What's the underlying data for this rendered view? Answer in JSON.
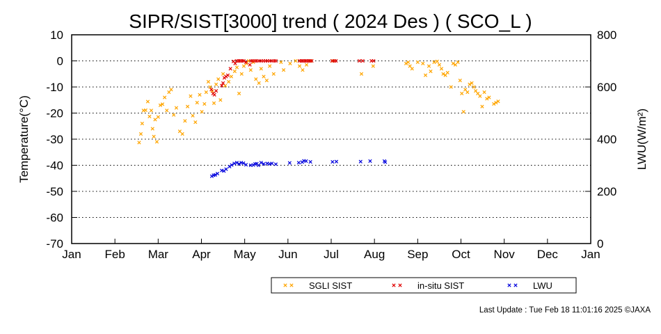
{
  "chart_data": {
    "type": "scatter",
    "title": "SIPR/SIST[3000] trend ( 2024 Des ) ( SCO_L )",
    "ylabel": "Temperature(°C)",
    "y2label": "LWU(W/m²)",
    "ylim": [
      -70,
      10
    ],
    "y2lim": [
      0,
      800
    ],
    "yticks": [
      "10",
      "0",
      "-10",
      "-20",
      "-30",
      "-40",
      "-50",
      "-60",
      "-70"
    ],
    "y2ticks": [
      "800",
      "600",
      "400",
      "200",
      "0"
    ],
    "xtick_labels": [
      "Jan",
      "Feb",
      "Mar",
      "Apr",
      "May",
      "Jun",
      "Jul",
      "Aug",
      "Sep",
      "Oct",
      "Nov",
      "Dec",
      "Jan"
    ],
    "x_unit": "month (1.0 = Jan 1)",
    "grid": "horizontal dotted",
    "legend_position": "bottom-right",
    "series": [
      {
        "name": "SGLI SIST",
        "color": "#ffa500",
        "axis": "left",
        "points": [
          [
            2.56,
            -31.3
          ],
          [
            2.6,
            -28.0
          ],
          [
            2.63,
            -24.0
          ],
          [
            2.66,
            -19.0
          ],
          [
            2.71,
            -18.9
          ],
          [
            2.76,
            -15.6
          ],
          [
            2.8,
            -21.3
          ],
          [
            2.84,
            -19.0
          ],
          [
            2.87,
            -26.0
          ],
          [
            2.9,
            -29.0
          ],
          [
            2.93,
            -22.5
          ],
          [
            2.97,
            -31.0
          ],
          [
            3.0,
            -21.5
          ],
          [
            3.05,
            -17.0
          ],
          [
            3.1,
            -16.6
          ],
          [
            3.15,
            -14.0
          ],
          [
            3.2,
            -19.0
          ],
          [
            3.25,
            -12.0
          ],
          [
            3.3,
            -11.0
          ],
          [
            3.36,
            -20.7
          ],
          [
            3.42,
            -18.0
          ],
          [
            3.5,
            -27.0
          ],
          [
            3.56,
            -28.0
          ],
          [
            3.62,
            -23.0
          ],
          [
            3.68,
            -17.5
          ],
          [
            3.75,
            -13.5
          ],
          [
            3.8,
            -21.0
          ],
          [
            3.86,
            -23.5
          ],
          [
            3.9,
            -16.0
          ],
          [
            3.96,
            -13.0
          ],
          [
            4.01,
            -19.5
          ],
          [
            4.07,
            -16.5
          ],
          [
            4.11,
            -12.0
          ],
          [
            4.16,
            -8.0
          ],
          [
            4.2,
            -10.0
          ],
          [
            4.25,
            -11.5
          ],
          [
            4.29,
            -16.2
          ],
          [
            4.34,
            -9.0
          ],
          [
            4.39,
            -7.0
          ],
          [
            4.44,
            -15.0
          ],
          [
            4.5,
            -5.0
          ],
          [
            4.55,
            -9.5
          ],
          [
            4.63,
            -8.0
          ],
          [
            4.69,
            -6.0
          ],
          [
            4.77,
            -4.0
          ],
          [
            4.82,
            -2.5
          ],
          [
            4.87,
            -12.5
          ],
          [
            4.93,
            -5.0
          ],
          [
            4.98,
            -2.0
          ],
          [
            5.04,
            -1.0
          ],
          [
            5.09,
            0.0
          ],
          [
            5.14,
            -3.5
          ],
          [
            5.2,
            -0.5
          ],
          [
            5.26,
            -7.0
          ],
          [
            5.33,
            -8.5
          ],
          [
            5.38,
            -3.0
          ],
          [
            5.44,
            -6.0
          ],
          [
            5.51,
            -7.5
          ],
          [
            5.58,
            -2.0
          ],
          [
            5.67,
            -5.0
          ],
          [
            5.84,
            -0.5
          ],
          [
            5.9,
            -3.5
          ],
          [
            6.05,
            -1.0
          ],
          [
            6.18,
            0.0
          ],
          [
            6.27,
            -2.0
          ],
          [
            6.34,
            -3.5
          ],
          [
            6.43,
            -1.5
          ],
          [
            6.52,
            0.0
          ],
          [
            7.03,
            0.0
          ],
          [
            7.7,
            -5.0
          ],
          [
            7.97,
            -2.0
          ],
          [
            8.73,
            -1.0
          ],
          [
            8.78,
            -0.5
          ],
          [
            8.82,
            -2.0
          ],
          [
            8.87,
            -3.0
          ],
          [
            9.0,
            -0.5
          ],
          [
            9.12,
            -1.0
          ],
          [
            9.18,
            -5.5
          ],
          [
            9.26,
            -2.0
          ],
          [
            9.3,
            -4.0
          ],
          [
            9.38,
            -0.5
          ],
          [
            9.45,
            -0.2
          ],
          [
            9.5,
            -1.5
          ],
          [
            9.55,
            -3.0
          ],
          [
            9.59,
            -5.0
          ],
          [
            9.64,
            -5.5
          ],
          [
            9.69,
            -4.5
          ],
          [
            9.77,
            -10.0
          ],
          [
            9.82,
            -1.0
          ],
          [
            9.87,
            -1.5
          ],
          [
            9.93,
            -0.5
          ],
          [
            9.98,
            -7.5
          ],
          [
            10.02,
            -12.5
          ],
          [
            10.06,
            -19.5
          ],
          [
            10.1,
            -11.0
          ],
          [
            10.15,
            -12.0
          ],
          [
            10.2,
            -9.0
          ],
          [
            10.25,
            -8.5
          ],
          [
            10.3,
            -10.0
          ],
          [
            10.34,
            -11.5
          ],
          [
            10.39,
            -12.5
          ],
          [
            10.44,
            -13.5
          ],
          [
            10.49,
            -17.5
          ],
          [
            10.54,
            -12.0
          ],
          [
            10.6,
            -14.5
          ],
          [
            10.65,
            -14.0
          ],
          [
            10.76,
            -16.5
          ],
          [
            10.81,
            -16.0
          ],
          [
            10.86,
            -15.5
          ]
        ]
      },
      {
        "name": "in-situ SIST",
        "color": "#e00000",
        "axis": "left",
        "points": [
          [
            4.23,
            -11.0
          ],
          [
            4.27,
            -12.5
          ],
          [
            4.3,
            -13.0
          ],
          [
            4.34,
            -11.5
          ],
          [
            4.47,
            -9.5
          ],
          [
            4.5,
            -8.5
          ],
          [
            4.53,
            -6.5
          ],
          [
            4.57,
            -6.0
          ],
          [
            4.61,
            -5.5
          ],
          [
            4.67,
            -3.0
          ],
          [
            4.74,
            -0.2
          ],
          [
            4.78,
            -1.0
          ],
          [
            4.82,
            0.0
          ],
          [
            4.86,
            0.0
          ],
          [
            4.9,
            0.0
          ],
          [
            4.94,
            0.0
          ],
          [
            4.98,
            0.0
          ],
          [
            5.03,
            -0.5
          ],
          [
            5.12,
            -1.5
          ],
          [
            5.15,
            0.0
          ],
          [
            5.19,
            0.0
          ],
          [
            5.24,
            0.0
          ],
          [
            5.28,
            0.0
          ],
          [
            5.33,
            0.0
          ],
          [
            5.38,
            0.0
          ],
          [
            5.43,
            0.0
          ],
          [
            5.48,
            0.0
          ],
          [
            5.53,
            0.0
          ],
          [
            5.58,
            0.0
          ],
          [
            5.63,
            0.0
          ],
          [
            5.68,
            0.0
          ],
          [
            5.72,
            0.0
          ],
          [
            6.27,
            0.0
          ],
          [
            6.31,
            0.0
          ],
          [
            6.35,
            0.0
          ],
          [
            6.39,
            0.0
          ],
          [
            6.43,
            0.0
          ],
          [
            6.47,
            0.0
          ],
          [
            6.51,
            0.0
          ],
          [
            6.55,
            0.0
          ],
          [
            7.02,
            0.0
          ],
          [
            7.07,
            0.0
          ],
          [
            7.11,
            0.0
          ],
          [
            7.65,
            0.0
          ],
          [
            7.73,
            0.0
          ],
          [
            7.93,
            0.0
          ],
          [
            7.98,
            0.0
          ]
        ]
      },
      {
        "name": "LWU",
        "color": "#0000dd",
        "axis": "right",
        "points": [
          [
            4.24,
            258
          ],
          [
            4.28,
            262
          ],
          [
            4.32,
            263
          ],
          [
            4.37,
            268
          ],
          [
            4.47,
            280
          ],
          [
            4.52,
            278
          ],
          [
            4.57,
            285
          ],
          [
            4.65,
            295
          ],
          [
            4.7,
            301
          ],
          [
            4.76,
            307
          ],
          [
            4.82,
            310
          ],
          [
            4.87,
            305
          ],
          [
            4.92,
            310
          ],
          [
            4.97,
            308
          ],
          [
            5.03,
            302
          ],
          [
            5.14,
            300
          ],
          [
            5.2,
            301
          ],
          [
            5.24,
            305
          ],
          [
            5.28,
            306
          ],
          [
            5.32,
            300
          ],
          [
            5.38,
            310
          ],
          [
            5.44,
            305
          ],
          [
            5.52,
            307
          ],
          [
            5.58,
            305
          ],
          [
            5.63,
            307
          ],
          [
            5.72,
            304
          ],
          [
            6.04,
            309
          ],
          [
            6.25,
            310
          ],
          [
            6.33,
            312
          ],
          [
            6.37,
            317
          ],
          [
            6.42,
            316
          ],
          [
            6.52,
            313
          ],
          [
            7.03,
            313
          ],
          [
            7.12,
            314
          ],
          [
            7.68,
            314
          ],
          [
            7.9,
            316
          ],
          [
            8.23,
            316
          ],
          [
            8.25,
            312
          ]
        ]
      }
    ]
  },
  "footer": {
    "last_update": "Last Update : Tue Feb 18 11:01:16 2025  ©JAXA"
  }
}
